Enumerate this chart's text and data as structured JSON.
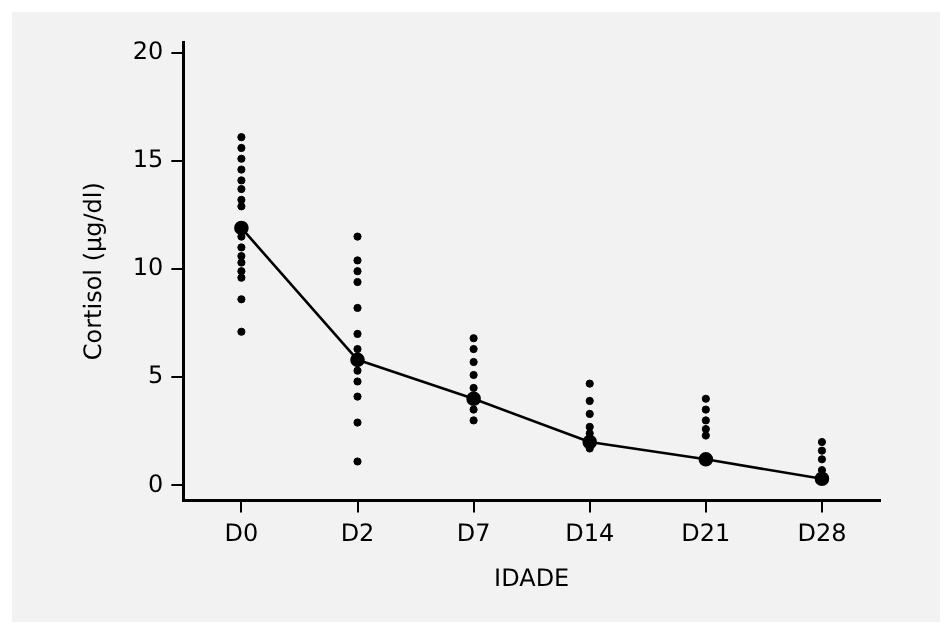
{
  "chart_data": {
    "type": "line",
    "xlabel": "IDADE",
    "ylabel": "Cortisol (µg/dl)",
    "categories": [
      "D0",
      "D2",
      "D7",
      "D14",
      "D21",
      "D28"
    ],
    "ylim": [
      -0.7,
      20.5
    ],
    "yticks": [
      0,
      5,
      10,
      15,
      20
    ],
    "grid": false,
    "legend": false,
    "marker": "circle",
    "line_style": "solid",
    "series": [
      {
        "type": "line",
        "color": "#000000",
        "values": [
          11.9,
          5.8,
          4.0,
          2.0,
          1.2,
          0.3
        ]
      },
      {
        "type": "scatter",
        "color": "#000000",
        "x": [
          "D0",
          "D0",
          "D0",
          "D0",
          "D0",
          "D0",
          "D0",
          "D0",
          "D0",
          "D0",
          "D0",
          "D0",
          "D0",
          "D0",
          "D0",
          "D0",
          "D2",
          "D2",
          "D2",
          "D2",
          "D2",
          "D2",
          "D2",
          "D2",
          "D2",
          "D2",
          "D2",
          "D2",
          "D7",
          "D7",
          "D7",
          "D7",
          "D7",
          "D7",
          "D7",
          "D14",
          "D14",
          "D14",
          "D14",
          "D14",
          "D14",
          "D21",
          "D21",
          "D21",
          "D21",
          "D21",
          "D28",
          "D28",
          "D28",
          "D28"
        ],
        "values": [
          16.1,
          15.6,
          15.1,
          14.6,
          14.1,
          13.7,
          13.2,
          12.9,
          11.5,
          11.0,
          10.6,
          10.3,
          9.9,
          9.6,
          8.6,
          7.1,
          11.5,
          10.4,
          9.9,
          9.4,
          8.2,
          7.0,
          6.3,
          5.3,
          4.8,
          4.1,
          2.9,
          1.1,
          6.8,
          6.3,
          5.7,
          5.1,
          4.5,
          3.5,
          3.0,
          4.7,
          3.9,
          3.3,
          2.7,
          2.4,
          1.7,
          4.0,
          3.5,
          3.0,
          2.6,
          2.3,
          2.0,
          1.6,
          1.2,
          0.7
        ]
      }
    ]
  }
}
